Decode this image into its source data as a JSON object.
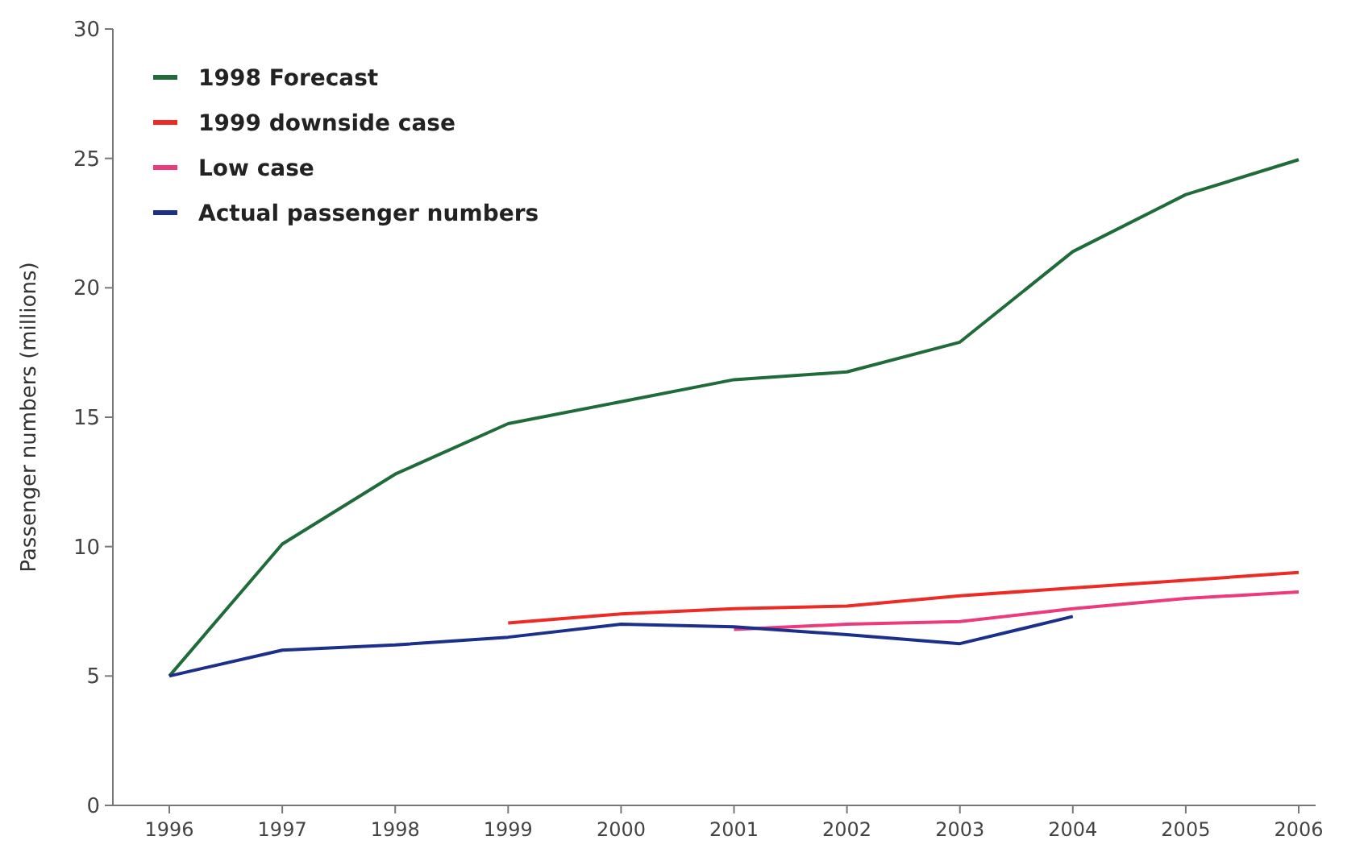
{
  "chart_data": {
    "type": "line",
    "ylabel": "Passenger numbers (millions)",
    "x": [
      1996,
      1997,
      1998,
      1999,
      2000,
      2001,
      2002,
      2003,
      2004,
      2005,
      2006
    ],
    "xlim": [
      1995.5,
      2006.15
    ],
    "xticks": [
      1996,
      1997,
      1998,
      1999,
      2000,
      2001,
      2002,
      2003,
      2004,
      2005,
      2006
    ],
    "ylim": [
      0,
      30
    ],
    "yticks": [
      0,
      5,
      10,
      15,
      20,
      25,
      30
    ],
    "grid": false,
    "legend": "top left",
    "marker": "none",
    "line_style": "solid",
    "series": [
      {
        "name": "1998 Forecast",
        "color": "#1f6b3a",
        "values": [
          5,
          10.1,
          12.8,
          14.75,
          15.6,
          16.45,
          16.75,
          17.9,
          21.4,
          23.6,
          24.95
        ]
      },
      {
        "name": "1999 downside case",
        "color": "#ee2a24",
        "values": [
          null,
          null,
          null,
          7.05,
          7.4,
          7.6,
          7.7,
          8.1,
          8.4,
          8.7,
          9.0
        ]
      },
      {
        "name": "Low case",
        "color": "#ec3a7c",
        "values": [
          null,
          null,
          null,
          null,
          null,
          6.8,
          7.0,
          7.1,
          7.6,
          8.0,
          8.25
        ]
      },
      {
        "name": "Actual passenger numbers",
        "color": "#1c2f8a",
        "values": [
          5,
          6.0,
          6.2,
          6.5,
          7.0,
          6.9,
          6.6,
          6.25,
          7.3,
          null,
          null
        ]
      }
    ]
  }
}
